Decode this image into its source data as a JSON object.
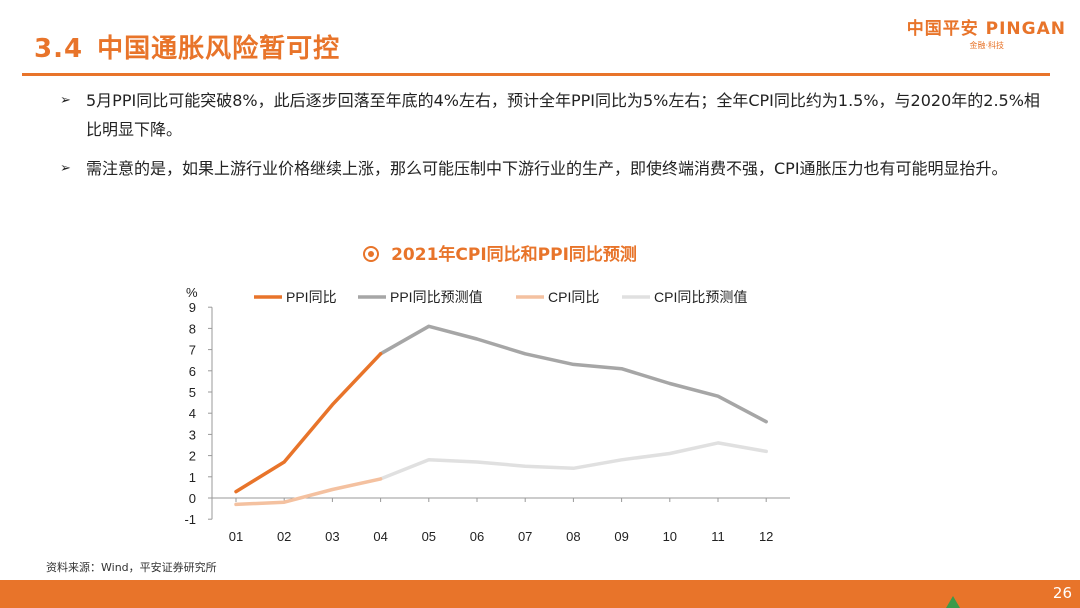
{
  "header": {
    "section_num": "3.4",
    "title": "中国通胀风险暂可控",
    "logo_main": "中国平安 PINGAN",
    "logo_sub": "金融·科技"
  },
  "bullets": [
    "5月PPI同比可能突破8%，此后逐步回落至年底的4%左右，预计全年PPI同比为5%左右；全年CPI同比约为1.5%，与2020年的2.5%相比明显下降。",
    "需注意的是，如果上游行业价格继续上涨，那么可能压制中下游行业的生产，即使终端消费不强，CPI通胀压力也有可能明显抬升。"
  ],
  "bullet_marker": "➢",
  "source": "资料来源：Wind，平安证券研究所",
  "page_number": "26",
  "chart_data": {
    "type": "line",
    "title": "2021年CPI同比和PPI同比预测",
    "ylabel": "%",
    "ylim": [
      -1,
      9
    ],
    "yticks": [
      "-1",
      "0",
      "1",
      "2",
      "3",
      "4",
      "5",
      "6",
      "7",
      "8",
      "9"
    ],
    "categories": [
      "01",
      "02",
      "03",
      "04",
      "05",
      "06",
      "07",
      "08",
      "09",
      "10",
      "11",
      "12"
    ],
    "legend_position": "top",
    "series": [
      {
        "name": "PPI同比",
        "color": "#e8742a",
        "values": [
          0.3,
          1.7,
          4.4,
          6.8,
          null,
          null,
          null,
          null,
          null,
          null,
          null,
          null
        ]
      },
      {
        "name": "PPI同比预测值",
        "color": "#a6a6a6",
        "values": [
          null,
          null,
          null,
          6.8,
          8.1,
          7.5,
          6.8,
          6.3,
          6.1,
          5.4,
          4.8,
          3.6
        ]
      },
      {
        "name": "CPI同比",
        "color": "#f4c1a0",
        "values": [
          -0.3,
          -0.2,
          0.4,
          0.9,
          null,
          null,
          null,
          null,
          null,
          null,
          null,
          null
        ]
      },
      {
        "name": "CPI同比预测值",
        "color": "#e0e0e0",
        "values": [
          null,
          null,
          null,
          0.9,
          1.8,
          1.7,
          1.5,
          1.4,
          1.8,
          2.1,
          2.6,
          2.2
        ]
      }
    ]
  }
}
